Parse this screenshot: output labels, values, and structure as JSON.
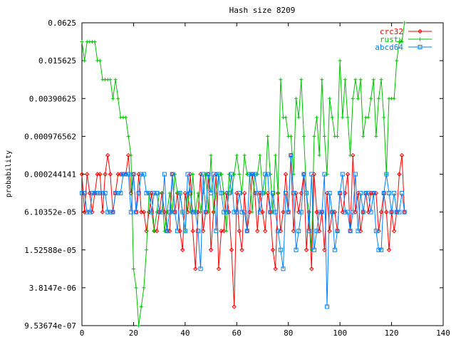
{
  "chart_data": {
    "type": "line",
    "title": "Hash size 8209",
    "xlabel": "",
    "ylabel": "probability",
    "xlim": [
      0,
      140
    ],
    "x_ticks": [
      "0",
      "20",
      "40",
      "60",
      "80",
      "100",
      "120",
      "140"
    ],
    "y_scale": "log2",
    "y_ticks": [
      "9.53674e-07",
      "3.8147e-06",
      "1.52588e-05",
      "6.10352e-05",
      "0.000244141",
      "0.000976562",
      "0.00390625",
      "0.015625",
      "0.0625"
    ],
    "legend_position": "top-right",
    "x": [
      0,
      1,
      2,
      3,
      4,
      5,
      6,
      7,
      8,
      9,
      10,
      11,
      12,
      13,
      14,
      15,
      16,
      17,
      18,
      19,
      20,
      21,
      22,
      23,
      24,
      25,
      26,
      27,
      28,
      29,
      30,
      31,
      32,
      33,
      34,
      35,
      36,
      37,
      38,
      39,
      40,
      41,
      42,
      43,
      44,
      45,
      46,
      47,
      48,
      49,
      50,
      51,
      52,
      53,
      54,
      55,
      56,
      57,
      58,
      59,
      60,
      61,
      62,
      63,
      64,
      65,
      66,
      67,
      68,
      69,
      70,
      71,
      72,
      73,
      74,
      75,
      76,
      77,
      78,
      79,
      80,
      81,
      82,
      83,
      84,
      85,
      86,
      87,
      88,
      89,
      90,
      91,
      92,
      93,
      94,
      95,
      96,
      97,
      98,
      99,
      100,
      101,
      102,
      103,
      104,
      105,
      106,
      107,
      108,
      109,
      110,
      111,
      112,
      113,
      114,
      115,
      116,
      117,
      118,
      119,
      120,
      121,
      122,
      123,
      124,
      125
    ],
    "series": [
      {
        "name": "crc32",
        "color": "#ff0000",
        "marker": "diamond",
        "exp": [
          -12,
          -14,
          -12,
          -13,
          -14,
          -13,
          -12,
          -12,
          -14,
          -12,
          -11,
          -12,
          -14,
          -13,
          -12,
          -12,
          -12,
          -12,
          -11,
          -13,
          -12,
          -14,
          -12,
          -14,
          -14,
          -15,
          -14,
          -13,
          -15,
          -15,
          -14,
          -13,
          -14,
          -15,
          -15,
          -12,
          -14,
          -13,
          -15,
          -16,
          -13,
          -14,
          -12,
          -15,
          -17,
          -14,
          -12,
          -15,
          -14,
          -12,
          -16,
          -14,
          -12,
          -17,
          -15,
          -15,
          -13,
          -14,
          -16,
          -19,
          -13,
          -15,
          -16,
          -13,
          -15,
          -14,
          -12,
          -13,
          -15,
          -13,
          -14,
          -15,
          -13,
          -14,
          -16,
          -17,
          -13,
          -15,
          -14,
          -12,
          -14,
          -11,
          -15,
          -13,
          -14,
          -13,
          -12,
          -16,
          -14,
          -17,
          -12,
          -14,
          -15,
          -14,
          -16,
          -13,
          -15,
          -14,
          -14,
          -15,
          -13,
          -14,
          -13,
          -12,
          -15,
          -11,
          -14,
          -13,
          -15,
          -14,
          -13,
          -14,
          -13,
          -13,
          -13,
          -15,
          -14,
          -13,
          -14,
          -16,
          -14,
          -15,
          -14,
          -12,
          -11,
          -14
        ],
        "legend_label": "crc32"
      },
      {
        "name": "rusty",
        "color": "#00c000",
        "marker": "plus",
        "exp": [
          -5,
          -6,
          -5,
          -5,
          -5,
          -5,
          -6,
          -6,
          -7,
          -7,
          -7,
          -7,
          -8,
          -7,
          -8,
          -9,
          -9,
          -9,
          -10,
          -11,
          -17,
          -18,
          -20,
          -19,
          -18,
          -16,
          -13,
          -14,
          -15,
          -14,
          -13,
          -13,
          -15,
          -14,
          -13,
          -14,
          -12,
          -13,
          -13,
          -14,
          -15,
          -13,
          -14,
          -12,
          -14,
          -13,
          -14,
          -13,
          -12,
          -14,
          -11,
          -14,
          -13,
          -12,
          -12,
          -13,
          -15,
          -12,
          -13,
          -12,
          -11,
          -12,
          -13,
          -11,
          -12,
          -12,
          -14,
          -12,
          -12,
          -11,
          -13,
          -13,
          -10,
          -12,
          -14,
          -11,
          -13,
          -7,
          -9,
          -9,
          -10,
          -10,
          -12,
          -8,
          -9,
          -7,
          -10,
          -13,
          -14,
          -16,
          -10,
          -9,
          -11,
          -7,
          -10,
          -12,
          -8,
          -9,
          -10,
          -10,
          -6,
          -9,
          -7,
          -9,
          -11,
          -8,
          -7,
          -8,
          -7,
          -10,
          -9,
          -9,
          -8,
          -7,
          -10,
          -8,
          -7,
          -9,
          -12,
          -8,
          -8,
          -8,
          -6,
          -5,
          -5,
          -4
        ],
        "legend_label": "rusty"
      },
      {
        "name": "abcd64",
        "color": "#0080ff",
        "marker": "square",
        "exp": [
          -13,
          -13,
          -14,
          -14,
          -13,
          -13,
          -13,
          -13,
          -13,
          -13,
          -14,
          -14,
          -14,
          -13,
          -13,
          -13,
          -12,
          -12,
          -12,
          -14,
          -12,
          -14,
          -13,
          -12,
          -12,
          -13,
          -13,
          -14,
          -13,
          -13,
          -14,
          -14,
          -12,
          -15,
          -14,
          -12,
          -14,
          -15,
          -13,
          -14,
          -15,
          -12,
          -13,
          -14,
          -14,
          -15,
          -17,
          -12,
          -14,
          -12,
          -13,
          -12,
          -15,
          -12,
          -13,
          -14,
          -14,
          -13,
          -12,
          -14,
          -14,
          -13,
          -14,
          -14,
          -15,
          -12,
          -12,
          -12,
          -13,
          -14,
          -13,
          -12,
          -12,
          -14,
          -13,
          -14,
          -15,
          -16,
          -17,
          -13,
          -14,
          -11,
          -13,
          -16,
          -15,
          -14,
          -12,
          -13,
          -15,
          -12,
          -16,
          -15,
          -14,
          -14,
          -12,
          -19,
          -13,
          -14,
          -16,
          -15,
          -13,
          -12,
          -14,
          -14,
          -15,
          -14,
          -12,
          -15,
          -13,
          -14,
          -13,
          -13,
          -14,
          -13,
          -15,
          -16,
          -16,
          -13,
          -12,
          -13,
          -14,
          -13,
          -14,
          -14,
          -13,
          -14
        ],
        "legend_label": "abcd64"
      }
    ]
  }
}
